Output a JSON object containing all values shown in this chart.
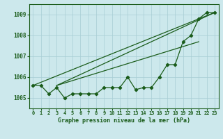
{
  "title": "Graphe pression niveau de la mer (hPa)",
  "background_color": "#cce8ec",
  "grid_color": "#a8cdd4",
  "line_color": "#1a5c1a",
  "xlim": [
    -0.5,
    23.5
  ],
  "ylim": [
    1004.5,
    1009.5
  ],
  "yticks": [
    1005,
    1006,
    1007,
    1008,
    1009
  ],
  "xticks": [
    0,
    1,
    2,
    3,
    4,
    5,
    6,
    7,
    8,
    9,
    10,
    11,
    12,
    13,
    14,
    15,
    16,
    17,
    18,
    19,
    20,
    21,
    22,
    23
  ],
  "xtick_labels": [
    "0",
    "1",
    "2",
    "3",
    "4",
    "5",
    "6",
    "7",
    "8",
    "9",
    "10",
    "11",
    "12",
    "13",
    "14",
    "15",
    "16",
    "17",
    "18",
    "19",
    "20",
    "21",
    "22",
    "23"
  ],
  "y_main": [
    1005.6,
    1005.6,
    1005.2,
    1005.5,
    1005.0,
    1005.2,
    1005.2,
    1005.2,
    1005.2,
    1005.5,
    1005.5,
    1005.5,
    1006.0,
    1005.4,
    1005.5,
    1005.5,
    1006.0,
    1006.6,
    1006.6,
    1007.7,
    1008.0,
    1008.8,
    1009.1,
    1009.1
  ],
  "linear_lines": [
    {
      "x0": 0,
      "y0": 1005.6,
      "x1": 23,
      "y1": 1009.1
    },
    {
      "x0": 3,
      "y0": 1005.6,
      "x1": 23,
      "y1": 1009.1
    },
    {
      "x0": 3,
      "y0": 1005.6,
      "x1": 21,
      "y1": 1007.7
    }
  ]
}
